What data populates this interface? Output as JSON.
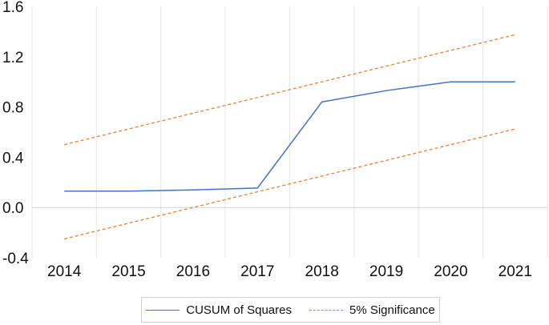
{
  "chart_data": {
    "type": "line",
    "x": [
      "2014",
      "2015",
      "2016",
      "2017",
      "2018",
      "2019",
      "2020",
      "2021"
    ],
    "series": [
      {
        "name": "CUSUM of Squares",
        "color": "#4472c4",
        "style": "solid",
        "values": [
          0.13,
          0.13,
          0.14,
          0.155,
          0.84,
          0.93,
          1.0,
          1.0
        ]
      },
      {
        "name": "5% Significance",
        "color": "#ed7d31",
        "style": "dashed",
        "values": [
          0.5,
          0.625,
          0.75,
          0.875,
          1.0,
          1.125,
          1.25,
          1.375
        ]
      },
      {
        "name": "",
        "color": "#ed7d31",
        "style": "dashed",
        "values": [
          -0.25,
          -0.125,
          0.0,
          0.125,
          0.25,
          0.375,
          0.5,
          0.625
        ]
      }
    ],
    "ylim": [
      -0.4,
      1.6
    ],
    "yticks": [
      "-0.4",
      "0.0",
      "0.4",
      "0.8",
      "1.2",
      "1.6"
    ],
    "grid": "vertical",
    "legend": "bottom",
    "title": "",
    "xlabel": "",
    "ylabel": ""
  },
  "legend": {
    "cusum_label": "CUSUM of Squares",
    "significance_label": "5% Significance"
  }
}
